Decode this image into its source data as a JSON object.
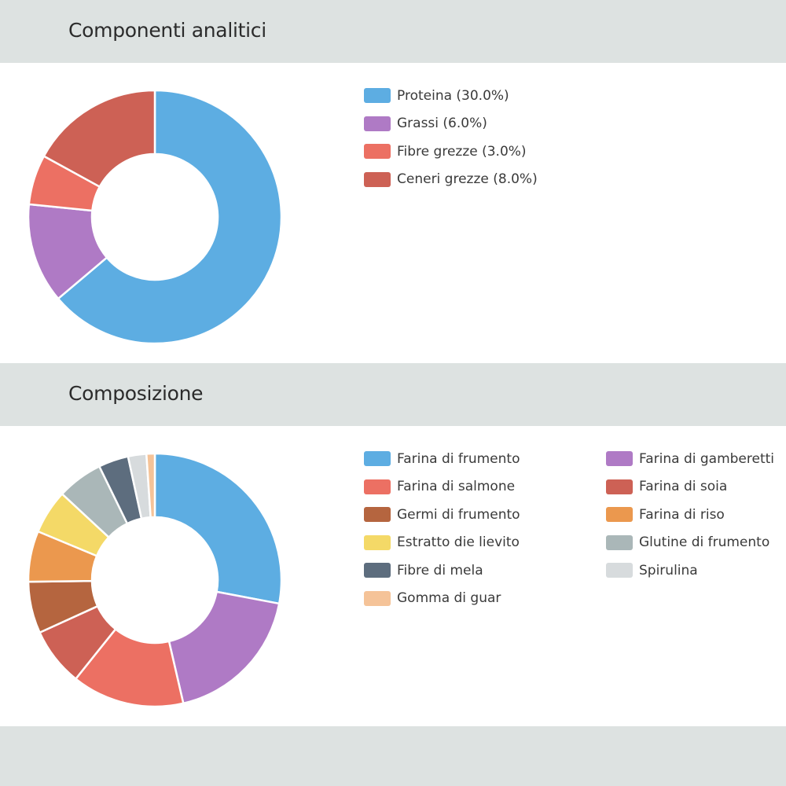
{
  "sections": [
    {
      "title": "Componenti analitici"
    },
    {
      "title": "Composizione"
    }
  ],
  "chart_data": [
    {
      "type": "pie",
      "title": "Componenti analitici",
      "donut": true,
      "labels": [
        "Proteina (30.0%)",
        "Grassi (6.0%)",
        "Fibre grezze (3.0%)",
        "Ceneri grezze (8.0%)"
      ],
      "values": [
        30.0,
        6.0,
        3.0,
        8.0
      ],
      "colors": [
        "#5dade2",
        "#af7ac5",
        "#ec7063",
        "#cd6155"
      ],
      "legend": "right"
    },
    {
      "type": "pie",
      "title": "Composizione",
      "donut": true,
      "labels": [
        "Farina di frumento",
        "Farina di gamberetti",
        "Farina di salmone",
        "Farina di soia",
        "Germi di frumento",
        "Farina di riso",
        "Estratto die lievito",
        "Glutine di frumento",
        "Fibre di mela",
        "Spirulina",
        "Gomma di guar"
      ],
      "values": [
        26.3,
        17.3,
        13.5,
        7.0,
        6.2,
        6.1,
        5.3,
        5.5,
        3.6,
        2.2,
        1.0
      ],
      "colors": [
        "#5dade2",
        "#af7ac5",
        "#ec7063",
        "#cd6155",
        "#b5653f",
        "#eb984e",
        "#f4d967",
        "#aab7b8",
        "#5d6d7e",
        "#d7dbdd",
        "#f5c398"
      ],
      "legend": "right"
    }
  ]
}
